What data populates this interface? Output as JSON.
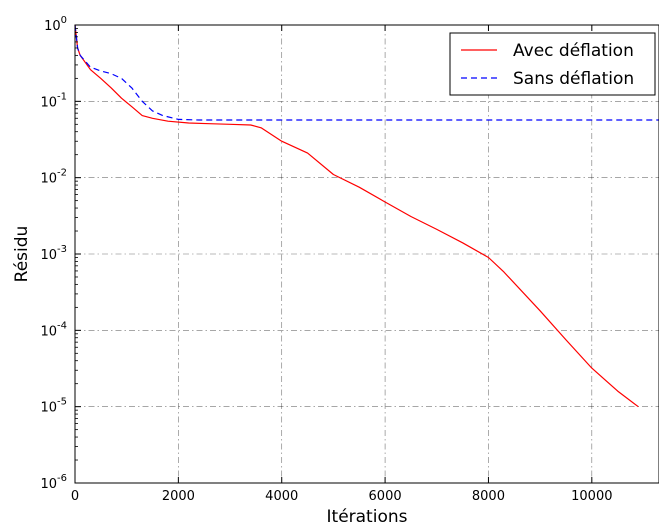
{
  "chart_data": {
    "type": "line",
    "xlabel": "Itérations",
    "ylabel": "Résidu",
    "xlim": [
      0,
      11300
    ],
    "ylim": [
      1e-06,
      1
    ],
    "yscale": "log",
    "grid": true,
    "legend_position": "top-right",
    "x_ticks": [
      0,
      2000,
      4000,
      6000,
      8000,
      10000
    ],
    "x_tick_labels": [
      "0",
      "2000",
      "4000",
      "6000",
      "8000",
      "10000"
    ],
    "y_tick_labels": [
      {
        "base": "10",
        "exp": "0"
      },
      {
        "base": "10",
        "exp": "-1"
      },
      {
        "base": "10",
        "exp": "-2"
      },
      {
        "base": "10",
        "exp": "-3"
      },
      {
        "base": "10",
        "exp": "-4"
      },
      {
        "base": "10",
        "exp": "-5"
      },
      {
        "base": "10",
        "exp": "-6"
      }
    ],
    "series": [
      {
        "name": "Avec déflation",
        "color": "#ff0000",
        "style": "solid",
        "x": [
          0,
          50,
          100,
          300,
          500,
          700,
          900,
          1100,
          1300,
          1500,
          1800,
          2200,
          2600,
          3000,
          3400,
          3600,
          4000,
          4500,
          5000,
          5500,
          6000,
          6500,
          7000,
          7500,
          8000,
          8300,
          9000,
          9500,
          10000,
          10500,
          10900
        ],
        "y": [
          1.0,
          0.5,
          0.4,
          0.26,
          0.2,
          0.15,
          0.11,
          0.085,
          0.065,
          0.06,
          0.055,
          0.052,
          0.051,
          0.05,
          0.049,
          0.045,
          0.03,
          0.021,
          0.011,
          0.0075,
          0.0048,
          0.0031,
          0.0021,
          0.0014,
          0.0009,
          0.00058,
          0.00018,
          7.5e-05,
          3.2e-05,
          1.6e-05,
          1e-05
        ]
      },
      {
        "name": "Sans déflation",
        "color": "#0000ff",
        "style": "dashed",
        "x": [
          0,
          50,
          100,
          300,
          500,
          700,
          900,
          1100,
          1300,
          1500,
          1700,
          2000,
          2400,
          3000,
          11300
        ],
        "y": [
          1.0,
          0.5,
          0.4,
          0.28,
          0.25,
          0.23,
          0.2,
          0.15,
          0.1,
          0.075,
          0.065,
          0.058,
          0.057,
          0.057,
          0.057
        ]
      }
    ]
  }
}
